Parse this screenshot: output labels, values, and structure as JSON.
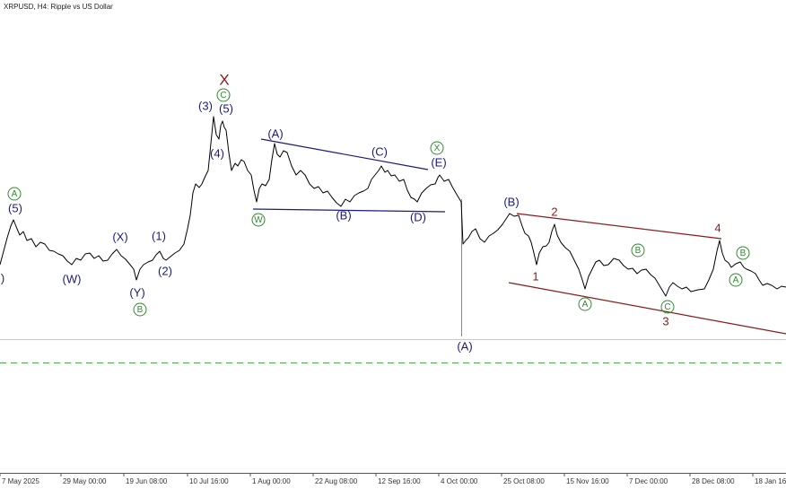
{
  "header": {
    "title": "XRPUSD, H4:  Ripple vs US Dollar"
  },
  "x_axis": {
    "labels": [
      "7 May 2025",
      "29 May 00:00",
      "19 Jun 08:00",
      "10 Jul 16:00",
      "1 Aug 00:00",
      "22 Aug 08:00",
      "12 Sep 16:00",
      "4 Oct 00:00",
      "25 Oct 08:00",
      "15 Nov 16:00",
      "7 Dec 00:00",
      "28 Dec 08:00",
      "18 Jan 16"
    ]
  },
  "wave_labels": [
    ")",
    "A",
    "(5)",
    "(W)",
    "(X)",
    "(1)",
    "(2)",
    "(Y)",
    "B",
    "(3)",
    "(5)",
    "X",
    "C",
    "(4)",
    "(A)",
    "W",
    "(B)",
    "(C)",
    "(D)",
    "(E)",
    "X",
    "(A)",
    "(B)",
    "1",
    "2",
    "3",
    "4",
    "A",
    "B",
    "C",
    "B",
    "A"
  ]
}
